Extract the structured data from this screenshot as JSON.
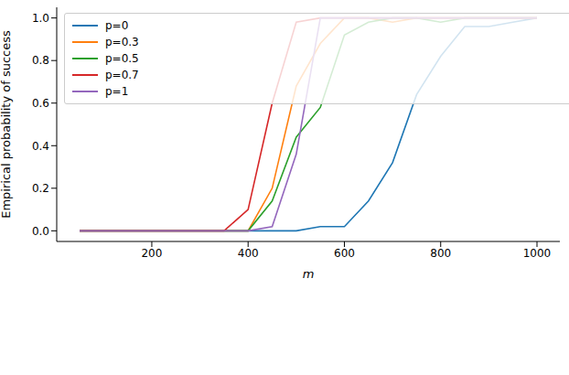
{
  "chart_data": {
    "type": "line",
    "x_label": "m",
    "y_label": "Empirical probability of success",
    "x": [
      50,
      100,
      150,
      200,
      250,
      300,
      350,
      400,
      450,
      500,
      550,
      600,
      650,
      700,
      750,
      800,
      850,
      900,
      950,
      1000
    ],
    "series": [
      {
        "name": "p=0",
        "color": "#1f77b4",
        "values": [
          0,
          0,
          0,
          0,
          0,
          0,
          0,
          0,
          0,
          0,
          0.02,
          0.02,
          0.14,
          0.32,
          0.64,
          0.82,
          0.96,
          0.96,
          0.98,
          1.0
        ]
      },
      {
        "name": "p=0.3",
        "color": "#ff7f0e",
        "values": [
          0,
          0,
          0,
          0,
          0,
          0,
          0,
          0,
          0.2,
          0.68,
          0.88,
          1.0,
          1.0,
          0.98,
          1.0,
          1.0,
          1.0,
          1.0,
          1.0,
          1.0
        ]
      },
      {
        "name": "p=0.5",
        "color": "#2ca02c",
        "values": [
          0,
          0,
          0,
          0,
          0,
          0,
          0,
          0,
          0.14,
          0.44,
          0.58,
          0.92,
          0.98,
          1.0,
          1.0,
          0.98,
          1.0,
          1.0,
          1.0,
          1.0
        ]
      },
      {
        "name": "p=0.7",
        "color": "#d62728",
        "values": [
          0,
          0,
          0,
          0,
          0,
          0,
          0,
          0.1,
          0.6,
          0.98,
          1.0,
          1.0,
          1.0,
          1.0,
          1.0,
          1.0,
          1.0,
          1.0,
          1.0,
          1.0
        ]
      },
      {
        "name": "p=1",
        "color": "#9467bd",
        "values": [
          0,
          0,
          0,
          0,
          0,
          0,
          0,
          0,
          0.02,
          0.36,
          1.0,
          1.0,
          1.0,
          1.0,
          1.0,
          1.0,
          1.0,
          1.0,
          1.0,
          1.0
        ]
      }
    ],
    "xlim": [
      2.5,
      1047.5
    ],
    "ylim": [
      -0.05,
      1.05
    ],
    "xticks": [
      200,
      400,
      600,
      800,
      1000
    ],
    "yticks": [
      {
        "value": 0,
        "label": "0.0"
      },
      0.2,
      0.4,
      0.6,
      0.8,
      {
        "value": 1,
        "label": "1.0"
      }
    ],
    "grid": false,
    "legend": "upper left"
  }
}
